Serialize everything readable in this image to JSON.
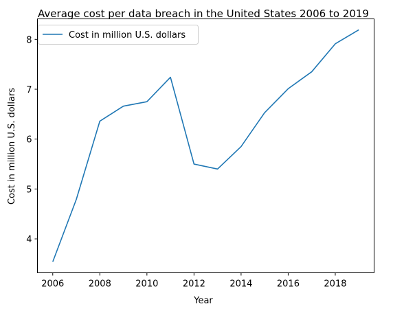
{
  "chart_data": {
    "type": "line",
    "title": "Average cost per data breach in the United States 2006 to 2019",
    "xlabel": "Year",
    "ylabel": "Cost in million U.S. dollars",
    "x": [
      2006,
      2007,
      2008,
      2009,
      2010,
      2011,
      2012,
      2013,
      2014,
      2015,
      2016,
      2017,
      2018,
      2019
    ],
    "series": [
      {
        "name": "Cost in million U.S. dollars",
        "color": "#1f77b4",
        "values": [
          3.54,
          4.79,
          6.36,
          6.66,
          6.75,
          7.24,
          5.5,
          5.4,
          5.85,
          6.53,
          7.01,
          7.35,
          7.91,
          8.19
        ]
      }
    ],
    "xlim": [
      2005.35,
      2019.65
    ],
    "ylim": [
      3.32,
      8.41
    ],
    "xticks": [
      2006,
      2008,
      2010,
      2012,
      2014,
      2016,
      2018
    ],
    "yticks": [
      4,
      5,
      6,
      7,
      8
    ],
    "grid": false,
    "legend": "top-left"
  }
}
